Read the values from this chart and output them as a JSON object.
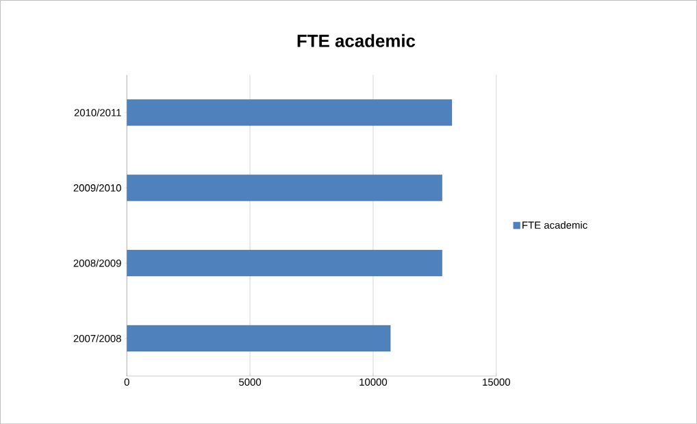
{
  "chart_data": {
    "type": "bar",
    "orientation": "horizontal",
    "title": "FTE academic",
    "categories": [
      "2010/2011",
      "2009/2010",
      "2008/2009",
      "2007/2008"
    ],
    "series": [
      {
        "name": "FTE academic",
        "color": "#4f81bd",
        "values": [
          13200,
          12800,
          12800,
          10700
        ]
      }
    ],
    "xlim": [
      0,
      15000
    ],
    "xticks": [
      0,
      5000,
      10000,
      15000
    ],
    "grid": "x",
    "legend": "right"
  }
}
